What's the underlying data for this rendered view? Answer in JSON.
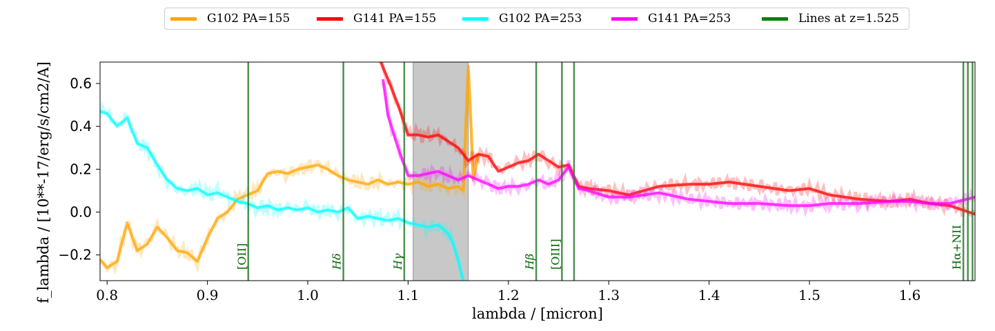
{
  "chart_data": {
    "type": "line",
    "title": "",
    "xlabel": "lambda / [micron]",
    "ylabel": "f_lambda / [10**-17/erg/s/cm2/A]",
    "xlim": [
      0.793,
      1.665
    ],
    "ylim": [
      -0.32,
      0.7
    ],
    "xticks": [
      0.8,
      0.9,
      1.0,
      1.1,
      1.2,
      1.3,
      1.4,
      1.5,
      1.6
    ],
    "xtick_labels": [
      "0.8",
      "0.9",
      "1.0",
      "1.1",
      "1.2",
      "1.3",
      "1.4",
      "1.5",
      "1.6"
    ],
    "yticks": [
      -0.2,
      0.0,
      0.2,
      0.4,
      0.6
    ],
    "ytick_labels": [
      "−0.2",
      "0.0",
      "0.2",
      "0.4",
      "0.6"
    ],
    "grid": false,
    "legend_position": "top-center",
    "shaded_region": {
      "x0": 1.105,
      "x1": 1.16,
      "color": "#c8c8c8"
    },
    "series": [
      {
        "name": "G102 PA=155",
        "color": "#ffa500",
        "x": [
          0.793,
          0.8,
          0.81,
          0.82,
          0.83,
          0.84,
          0.85,
          0.86,
          0.87,
          0.88,
          0.89,
          0.9,
          0.91,
          0.92,
          0.93,
          0.94,
          0.95,
          0.96,
          0.97,
          0.98,
          0.99,
          1.0,
          1.01,
          1.02,
          1.03,
          1.04,
          1.05,
          1.06,
          1.07,
          1.08,
          1.09,
          1.1,
          1.11,
          1.12,
          1.13,
          1.14,
          1.15,
          1.155,
          1.16,
          1.165,
          1.17
        ],
        "y": [
          -0.22,
          -0.26,
          -0.23,
          -0.05,
          -0.18,
          -0.15,
          -0.07,
          -0.12,
          -0.18,
          -0.19,
          -0.23,
          -0.12,
          -0.03,
          0.0,
          0.06,
          0.08,
          0.1,
          0.18,
          0.19,
          0.18,
          0.2,
          0.21,
          0.22,
          0.2,
          0.17,
          0.15,
          0.14,
          0.13,
          0.15,
          0.13,
          0.14,
          0.13,
          0.14,
          0.12,
          0.13,
          0.11,
          0.12,
          0.1,
          0.68,
          0.15,
          0.27
        ]
      },
      {
        "name": "G141 PA=155",
        "color": "#ff0000",
        "x": [
          1.07,
          1.08,
          1.09,
          1.1,
          1.11,
          1.12,
          1.13,
          1.14,
          1.15,
          1.16,
          1.17,
          1.18,
          1.19,
          1.2,
          1.21,
          1.22,
          1.23,
          1.24,
          1.25,
          1.26,
          1.27,
          1.28,
          1.3,
          1.32,
          1.35,
          1.38,
          1.4,
          1.42,
          1.45,
          1.48,
          1.5,
          1.52,
          1.55,
          1.58,
          1.6,
          1.62,
          1.64,
          1.665
        ],
        "y": [
          0.73,
          0.62,
          0.5,
          0.36,
          0.36,
          0.35,
          0.36,
          0.33,
          0.3,
          0.24,
          0.27,
          0.26,
          0.19,
          0.21,
          0.23,
          0.24,
          0.27,
          0.24,
          0.21,
          0.22,
          0.12,
          0.11,
          0.1,
          0.08,
          0.12,
          0.13,
          0.13,
          0.14,
          0.12,
          0.1,
          0.11,
          0.08,
          0.06,
          0.05,
          0.06,
          0.04,
          0.03,
          -0.01
        ]
      },
      {
        "name": "G102 PA=253",
        "color": "#00ffff",
        "x": [
          0.793,
          0.8,
          0.81,
          0.82,
          0.83,
          0.84,
          0.85,
          0.86,
          0.87,
          0.88,
          0.89,
          0.9,
          0.91,
          0.92,
          0.93,
          0.94,
          0.95,
          0.96,
          0.97,
          0.98,
          0.99,
          1.0,
          1.01,
          1.02,
          1.03,
          1.04,
          1.05,
          1.06,
          1.07,
          1.08,
          1.09,
          1.1,
          1.11,
          1.12,
          1.13,
          1.14,
          1.145,
          1.15,
          1.155
        ],
        "y": [
          0.47,
          0.46,
          0.4,
          0.44,
          0.32,
          0.3,
          0.22,
          0.15,
          0.11,
          0.1,
          0.11,
          0.08,
          0.09,
          0.07,
          0.05,
          0.04,
          0.02,
          0.03,
          0.01,
          0.02,
          0.01,
          0.02,
          0.0,
          0.01,
          0.0,
          0.02,
          -0.03,
          -0.02,
          -0.03,
          -0.04,
          -0.03,
          -0.05,
          -0.06,
          -0.07,
          -0.06,
          -0.1,
          -0.15,
          -0.23,
          -0.32
        ]
      },
      {
        "name": "G141 PA=253",
        "color": "#ff00ff",
        "x": [
          1.075,
          1.08,
          1.09,
          1.1,
          1.11,
          1.12,
          1.13,
          1.14,
          1.15,
          1.16,
          1.17,
          1.18,
          1.19,
          1.2,
          1.21,
          1.22,
          1.23,
          1.24,
          1.25,
          1.26,
          1.27,
          1.28,
          1.3,
          1.32,
          1.35,
          1.38,
          1.4,
          1.42,
          1.45,
          1.48,
          1.5,
          1.52,
          1.55,
          1.58,
          1.6,
          1.62,
          1.64,
          1.665
        ],
        "y": [
          0.62,
          0.45,
          0.3,
          0.17,
          0.17,
          0.18,
          0.19,
          0.17,
          0.15,
          0.17,
          0.15,
          0.13,
          0.11,
          0.12,
          0.12,
          0.13,
          0.15,
          0.13,
          0.15,
          0.21,
          0.11,
          0.1,
          0.07,
          0.07,
          0.09,
          0.06,
          0.05,
          0.04,
          0.04,
          0.03,
          0.03,
          0.04,
          0.04,
          0.05,
          0.05,
          0.04,
          0.04,
          0.07
        ]
      }
    ],
    "lines_series": {
      "name": "Lines at z=1.525",
      "color": "#006400",
      "lines": [
        {
          "x": 0.9407,
          "label": "[OII]"
        },
        {
          "x": 1.0355,
          "label": "Hδ"
        },
        {
          "x": 1.0962,
          "label": "Hγ"
        },
        {
          "x": 1.2277,
          "label": "Hβ"
        },
        {
          "x": 1.2533,
          "label": "[OIII]"
        },
        {
          "x": 1.2654,
          "label": ""
        },
        {
          "x": 1.6534,
          "label": "Hα+NII"
        },
        {
          "x": 1.6579,
          "label": ""
        },
        {
          "x": 1.6625,
          "label": ""
        }
      ]
    }
  },
  "legend": {
    "items": [
      {
        "label": "G102 PA=155",
        "color": "#ffa500"
      },
      {
        "label": "G141 PA=155",
        "color": "#ff0000"
      },
      {
        "label": "G102 PA=253",
        "color": "#00ffff"
      },
      {
        "label": "G141 PA=253",
        "color": "#ff00ff"
      },
      {
        "label": "Lines at z=1.525",
        "color": "#008000"
      }
    ]
  }
}
